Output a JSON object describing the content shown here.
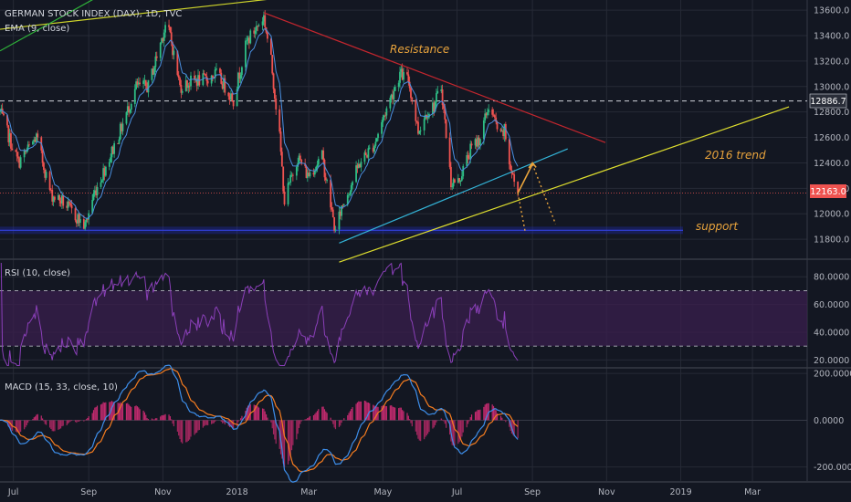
{
  "colors": {
    "background": "#131722",
    "grid": "#262a36",
    "up": "#26a69a",
    "up_fill": "#2ebd85",
    "down": "#ef5350",
    "ema": "#4a8fe0",
    "rsi": "#8a3fb8",
    "rsi_band": "#3a1f4e",
    "macd_line": "#3d8eea",
    "signal_line": "#f57c1f",
    "hist_pos": "#c12a6e",
    "hist_neg": "#a3275f",
    "resistance": "#c4262e",
    "trend2016": "#dede2e",
    "channel": "#33b3d6",
    "support": "#1f2ab8",
    "annotation": "#e8a33c",
    "topline": "#cfd52b",
    "greenline": "#2fb53a"
  },
  "header": {
    "main_title": "GERMAN STOCK INDEX (DAX), 1D, TVC",
    "ema_label": "EMA (9, close)",
    "rsi_label": "RSI (10, close)",
    "macd_label": "MACD (15, 33, close, 10)"
  },
  "annotations": {
    "resistance": "Resistance",
    "trend2016": "2016 trend",
    "support": "support"
  },
  "price_tags": {
    "level": "12886.7",
    "last": "12163.0"
  },
  "chart_data": [
    {
      "type": "candlestick",
      "panel": "price",
      "title": "GERMAN STOCK INDEX (DAX), 1D, TVC",
      "x_labels": [
        "Jul",
        "Sep",
        "Nov",
        "2018",
        "Mar",
        "May",
        "Jul",
        "Sep",
        "Nov",
        "2019",
        "Mar"
      ],
      "y_ticks": [
        11800,
        12000,
        12200,
        12400,
        12600,
        12800,
        13000,
        13200,
        13400,
        13600
      ],
      "ylim": [
        11650,
        13680
      ],
      "keypoints": [
        [
          "2017-06-20",
          12800
        ],
        [
          "2017-07-05",
          12400
        ],
        [
          "2017-07-20",
          12600
        ],
        [
          "2017-08-01",
          12150
        ],
        [
          "2017-08-10",
          12100
        ],
        [
          "2017-08-29",
          11900
        ],
        [
          "2017-09-05",
          12150
        ],
        [
          "2017-09-25",
          12600
        ],
        [
          "2017-10-10",
          13000
        ],
        [
          "2017-10-20",
          13000
        ],
        [
          "2017-11-03",
          13480
        ],
        [
          "2017-11-07",
          13400
        ],
        [
          "2017-11-15",
          13000
        ],
        [
          "2017-11-28",
          13050
        ],
        [
          "2017-12-05",
          13050
        ],
        [
          "2017-12-15",
          13100
        ],
        [
          "2017-12-29",
          12900
        ],
        [
          "2018-01-09",
          13350
        ],
        [
          "2018-01-23",
          13550
        ],
        [
          "2018-01-29",
          13200
        ],
        [
          "2018-02-05",
          12600
        ],
        [
          "2018-02-09",
          12100
        ],
        [
          "2018-02-20",
          12450
        ],
        [
          "2018-02-28",
          12300
        ],
        [
          "2018-03-12",
          12450
        ],
        [
          "2018-03-23",
          11850
        ],
        [
          "2018-03-28",
          12050
        ],
        [
          "2018-04-12",
          12400
        ],
        [
          "2018-04-24",
          12550
        ],
        [
          "2018-05-03",
          12800
        ],
        [
          "2018-05-15",
          13100
        ],
        [
          "2018-05-22",
          13050
        ],
        [
          "2018-05-30",
          12650
        ],
        [
          "2018-06-06",
          12800
        ],
        [
          "2018-06-12",
          12850
        ],
        [
          "2018-06-18",
          13000
        ],
        [
          "2018-06-26",
          12250
        ],
        [
          "2018-07-02",
          12250
        ],
        [
          "2018-07-12",
          12500
        ],
        [
          "2018-07-20",
          12600
        ],
        [
          "2018-07-27",
          12850
        ],
        [
          "2018-08-06",
          12600
        ],
        [
          "2018-08-09",
          12650
        ],
        [
          "2018-08-14",
          12350
        ],
        [
          "2018-08-20",
          12163
        ]
      ],
      "ema_period": 9,
      "last_price": 12163.0,
      "marked_level": 12886.7,
      "support_level": 11870,
      "lines": [
        {
          "name": "Resistance",
          "from": [
            "2018-01-23",
            13580
          ],
          "to": [
            "2018-10-31",
            12560
          ]
        },
        {
          "name": "2016 trend",
          "from": [
            "2018-03-26",
            11620
          ],
          "to": [
            "2019-03-31",
            12840
          ]
        },
        {
          "name": "channel",
          "from": [
            "2018-03-26",
            11770
          ],
          "to": [
            "2018-09-30",
            12510
          ]
        }
      ]
    },
    {
      "type": "line",
      "panel": "rsi",
      "title": "RSI (10, close)",
      "y_ticks": [
        20,
        40,
        60,
        80
      ],
      "ylim": [
        15,
        92
      ],
      "band": [
        30,
        70
      ]
    },
    {
      "type": "line+histogram",
      "panel": "macd",
      "title": "MACD (15, 33, close, 10)",
      "y_ticks": [
        -200,
        0,
        200
      ],
      "ylim": [
        -260,
        220
      ]
    }
  ]
}
